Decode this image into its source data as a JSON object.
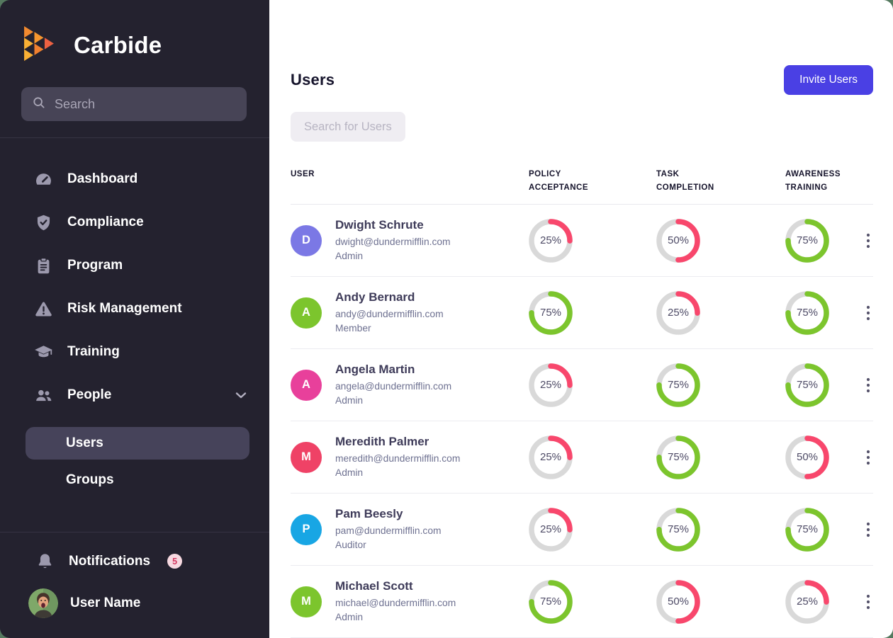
{
  "theme": {
    "accent": "#4a40e4",
    "ring_green": "#7cc52d",
    "ring_red": "#f8476c",
    "ring_track": "#d9d9d9",
    "sidebar_bg": "#24222f",
    "badge_bg": "#f7d9e1",
    "badge_text": "#d4365f"
  },
  "sidebar": {
    "brand": "Carbide",
    "search_placeholder": "Search",
    "items": [
      {
        "label": "Dashboard",
        "icon": "dashboard-gauge-icon"
      },
      {
        "label": "Compliance",
        "icon": "shield-check-icon"
      },
      {
        "label": "Program",
        "icon": "clipboard-icon"
      },
      {
        "label": "Risk Management",
        "icon": "warning-triangle-icon"
      },
      {
        "label": "Training",
        "icon": "graduation-cap-icon"
      },
      {
        "label": "People",
        "icon": "people-icon",
        "expanded": true
      }
    ],
    "sub_items": [
      {
        "label": "Users",
        "active": true
      },
      {
        "label": "Groups",
        "active": false
      }
    ],
    "notifications": {
      "label": "Notifications",
      "badge": "5"
    },
    "user": {
      "label": "User Name"
    }
  },
  "main": {
    "title": "Users",
    "invite_button": "Invite Users",
    "search_placeholder": "Search for Users",
    "table": {
      "columns": [
        "User",
        "Policy Acceptance",
        "Task Completion",
        "Awareness Training"
      ],
      "rows": [
        {
          "name": "Dwight Schrute",
          "email": "dwight@dundermifflin.com",
          "role": "Admin",
          "initial": "D",
          "avatar_color": "#7b78e5",
          "policy_acceptance": 25,
          "task_completion": 50,
          "awareness_training": 75
        },
        {
          "name": "Andy Bernard",
          "email": "andy@dundermifflin.com",
          "role": "Member",
          "initial": "A",
          "avatar_color": "#7cc52d",
          "policy_acceptance": 75,
          "task_completion": 25,
          "awareness_training": 75
        },
        {
          "name": "Angela Martin",
          "email": "angela@dundermifflin.com",
          "role": "Admin",
          "initial": "A",
          "avatar_color": "#e8409b",
          "policy_acceptance": 25,
          "task_completion": 75,
          "awareness_training": 75
        },
        {
          "name": "Meredith Palmer",
          "email": "meredith@dundermifflin.com",
          "role": "Admin",
          "initial": "M",
          "avatar_color": "#ef4266",
          "policy_acceptance": 25,
          "task_completion": 75,
          "awareness_training": 50
        },
        {
          "name": "Pam Beesly",
          "email": "pam@dundermifflin.com",
          "role": "Auditor",
          "initial": "P",
          "avatar_color": "#18a6e4",
          "policy_acceptance": 25,
          "task_completion": 75,
          "awareness_training": 75
        },
        {
          "name": "Michael Scott",
          "email": "michael@dundermifflin.com",
          "role": "Admin",
          "initial": "M",
          "avatar_color": "#7cc52d",
          "policy_acceptance": 75,
          "task_completion": 50,
          "awareness_training": 25
        }
      ]
    }
  }
}
